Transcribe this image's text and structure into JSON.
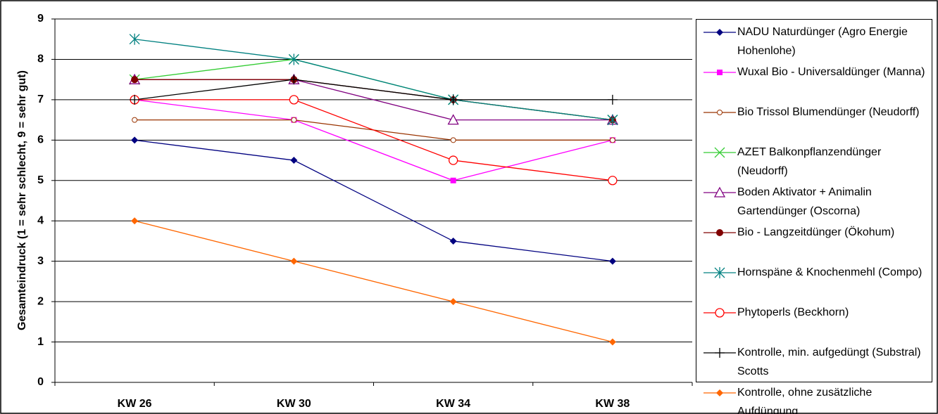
{
  "chart_data": {
    "type": "line",
    "y_label": "Gesamteindruck (1 = sehr schlecht, 9 = sehr gut)",
    "categories": [
      "KW 26",
      "KW 30",
      "KW 34",
      "KW 38"
    ],
    "ylim": [
      0,
      9
    ],
    "yticks": [
      0,
      1,
      2,
      3,
      4,
      5,
      6,
      7,
      8,
      9
    ],
    "grid": true,
    "series": [
      {
        "name": "NADU Naturdünger (Agro Energie Hohenlohe)",
        "color": "#000080",
        "marker": "diamond",
        "values": [
          6,
          5.5,
          3.5,
          3
        ]
      },
      {
        "name": "Wuxal Bio - Universaldünger (Manna)",
        "color": "#ff00ff",
        "marker": "square",
        "values": [
          7,
          6.5,
          5,
          6
        ]
      },
      {
        "name": "Bio Trissol Blumendünger (Neudorff)",
        "color": "#993300",
        "marker": "small-circle",
        "values": [
          6.5,
          6.5,
          6,
          6
        ]
      },
      {
        "name": "AZET Balkonpflanzendünger (Neudorff)",
        "color": "#33cc33",
        "marker": "x",
        "values": [
          7.5,
          8,
          7,
          6.5
        ]
      },
      {
        "name": "Boden Aktivator + Animalin Gartendünger (Oscorna)",
        "color": "#800080",
        "marker": "triangle",
        "values": [
          7.5,
          7.5,
          6.5,
          6.5
        ]
      },
      {
        "name": "Bio - Langzeitdünger (Ökohum)",
        "color": "#800000",
        "marker": "filled-circle",
        "values": [
          7.5,
          7.5,
          7,
          6.5
        ]
      },
      {
        "name": "Hornspäne & Knochenmehl (Compo)",
        "color": "#008080",
        "marker": "asterisk",
        "values": [
          8.5,
          8,
          7,
          6.5
        ]
      },
      {
        "name": "Phytoperls (Beckhorn)",
        "color": "#ff0000",
        "marker": "circle",
        "values": [
          7,
          7,
          5.5,
          5
        ]
      },
      {
        "name": "Kontrolle, min. aufgedüngt (Substral) Scotts",
        "color": "#000000",
        "marker": "plus",
        "values": [
          7,
          7.5,
          7,
          7
        ]
      },
      {
        "name": "Kontrolle, ohne zusätzliche Aufdüngung",
        "color": "#ff6600",
        "marker": "diamond",
        "values": [
          4,
          3,
          2,
          1
        ]
      }
    ]
  }
}
